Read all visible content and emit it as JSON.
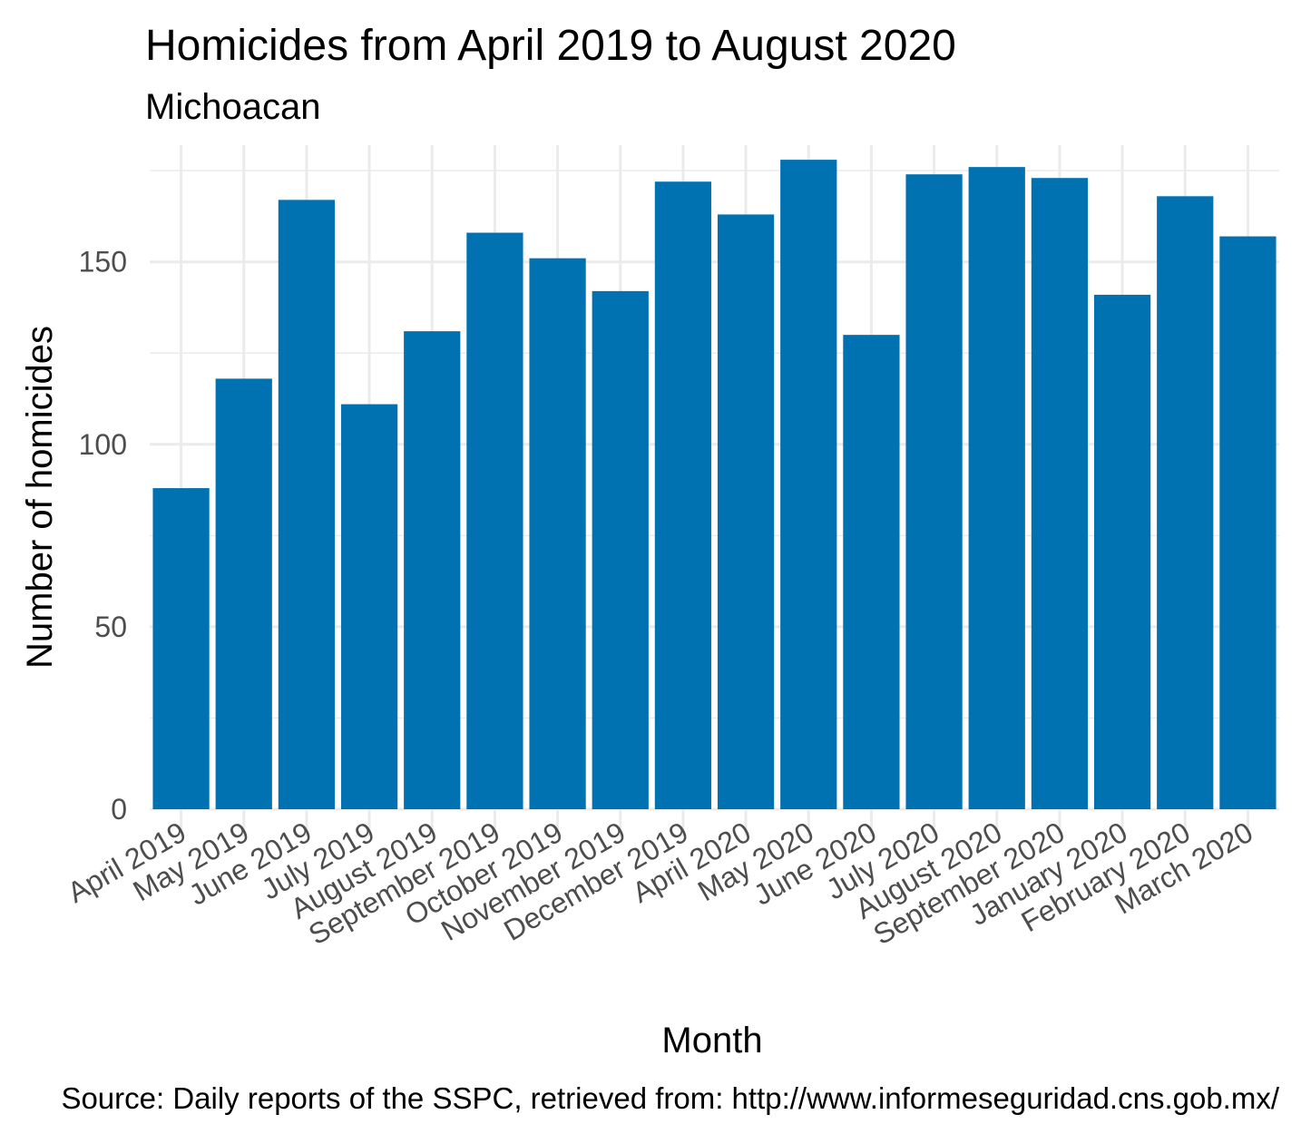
{
  "chart_data": {
    "type": "bar",
    "title": "Homicides from April 2019 to August 2020",
    "subtitle": "Michoacan",
    "xlabel": "Month",
    "ylabel": "Number of homicides",
    "caption": "Source: Daily reports of the SSPC, retrieved from: http://www.informeseguridad.cns.gob.mx/",
    "categories": [
      "April 2019",
      "May 2019",
      "June 2019",
      "July 2019",
      "August 2019",
      "September 2019",
      "October 2019",
      "November 2019",
      "December 2019",
      "April 2020",
      "May 2020",
      "June 2020",
      "July 2020",
      "August 2020",
      "September 2020",
      "January 2020",
      "February 2020",
      "March 2020"
    ],
    "values": [
      88,
      118,
      167,
      111,
      131,
      158,
      151,
      142,
      172,
      163,
      178,
      130,
      174,
      176,
      173,
      141,
      168,
      157
    ],
    "ylim": [
      0,
      182
    ],
    "yticks": [
      0,
      50,
      100,
      150
    ],
    "grid": true,
    "bar_color": "#0072B2",
    "grid_color": "#EBEBEB"
  }
}
